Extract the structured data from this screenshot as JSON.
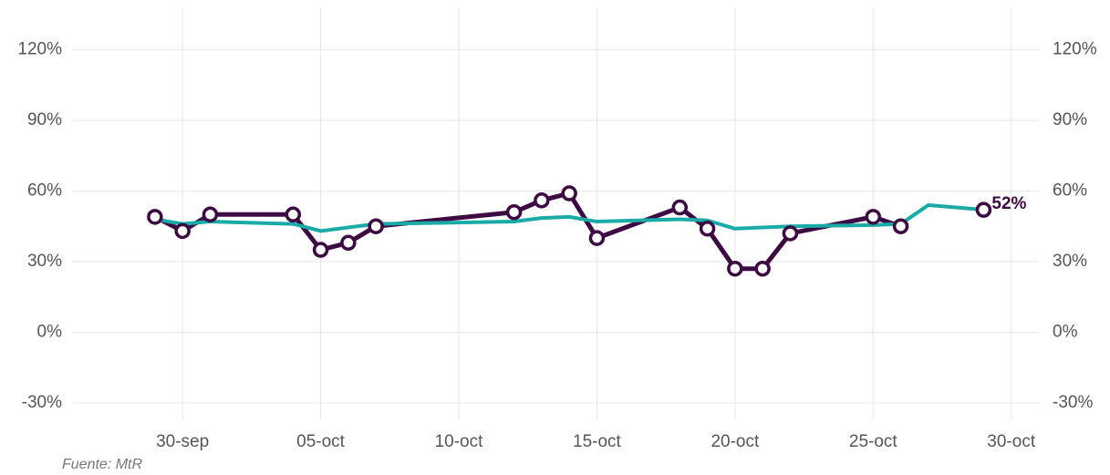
{
  "chart_data": {
    "type": "line",
    "source": "Fuente: MtR",
    "xlim": [
      "26-sep",
      "31-oct"
    ],
    "xticks": [
      "30-sep",
      "05-oct",
      "10-oct",
      "15-oct",
      "20-oct",
      "25-oct",
      "30-oct"
    ],
    "ylim": [
      -37,
      138
    ],
    "yticks": [
      {
        "value": -30,
        "label": "-30%"
      },
      {
        "value": 0,
        "label": "0%"
      },
      {
        "value": 30,
        "label": "30%"
      },
      {
        "value": 60,
        "label": "60%"
      },
      {
        "value": 90,
        "label": "90%"
      },
      {
        "value": 120,
        "label": "120%"
      }
    ],
    "grid": true,
    "series": [
      {
        "color": "#3d0a43",
        "markers": true,
        "x": [
          "29-sep",
          "30-sep",
          "01-oct",
          "04-oct",
          "05-oct",
          "06-oct",
          "07-oct",
          "12-oct",
          "13-oct",
          "14-oct",
          "15-oct",
          "18-oct",
          "19-oct",
          "20-oct",
          "21-oct",
          "22-oct",
          "25-oct",
          "26-oct",
          "27-oct",
          "29-oct"
        ],
        "values": [
          49,
          43,
          50,
          50,
          35,
          38,
          45,
          51,
          56,
          59,
          40,
          53,
          44,
          27,
          27,
          42,
          49,
          45,
          null,
          52
        ],
        "value_labels": [
          null,
          null,
          null,
          null,
          null,
          null,
          null,
          null,
          null,
          null,
          null,
          null,
          null,
          null,
          null,
          null,
          null,
          null,
          null,
          "52%"
        ]
      },
      {
        "color": "#1aaba8",
        "markers": false,
        "x": [
          "29-sep",
          "30-sep",
          "01-oct",
          "04-oct",
          "05-oct",
          "06-oct",
          "07-oct",
          "12-oct",
          "13-oct",
          "14-oct",
          "15-oct",
          "18-oct",
          "19-oct",
          "20-oct",
          "21-oct",
          "22-oct",
          "25-oct",
          "26-oct",
          "27-oct",
          "28-oct",
          "29-oct"
        ],
        "values": [
          48,
          46,
          47,
          46,
          43,
          44.5,
          46,
          47,
          48.5,
          49,
          47,
          48,
          47.5,
          44,
          44.5,
          45,
          45.5,
          46,
          54,
          53,
          52
        ]
      }
    ]
  }
}
